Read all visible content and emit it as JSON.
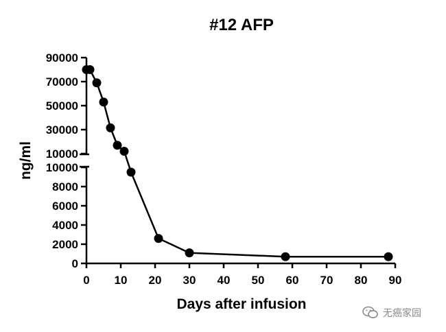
{
  "chart_data": {
    "type": "line",
    "title": "#12 AFP",
    "xlabel": "Days after infusion",
    "ylabel": "ng/ml",
    "xlim": [
      0,
      90
    ],
    "x_ticks": [
      0,
      10,
      20,
      30,
      40,
      50,
      60,
      70,
      80,
      90
    ],
    "y_axis_break": true,
    "y_upper": {
      "range": [
        10000,
        90000
      ],
      "ticks": [
        10000,
        30000,
        50000,
        70000,
        90000
      ]
    },
    "y_lower": {
      "range": [
        0,
        10000
      ],
      "ticks": [
        0,
        2000,
        4000,
        6000,
        8000,
        10000
      ]
    },
    "grid": false,
    "series": [
      {
        "color": "#000000",
        "marker": "filled-circle",
        "x": [
          0,
          1,
          3,
          5,
          7,
          9,
          11,
          13,
          21,
          30,
          58,
          88
        ],
        "y": [
          80000,
          80000,
          69000,
          53000,
          31500,
          17000,
          12000,
          9500,
          2600,
          1100,
          700,
          700
        ]
      }
    ]
  },
  "watermark": {
    "icon": "wechat-icon",
    "text": "无癌家园"
  }
}
